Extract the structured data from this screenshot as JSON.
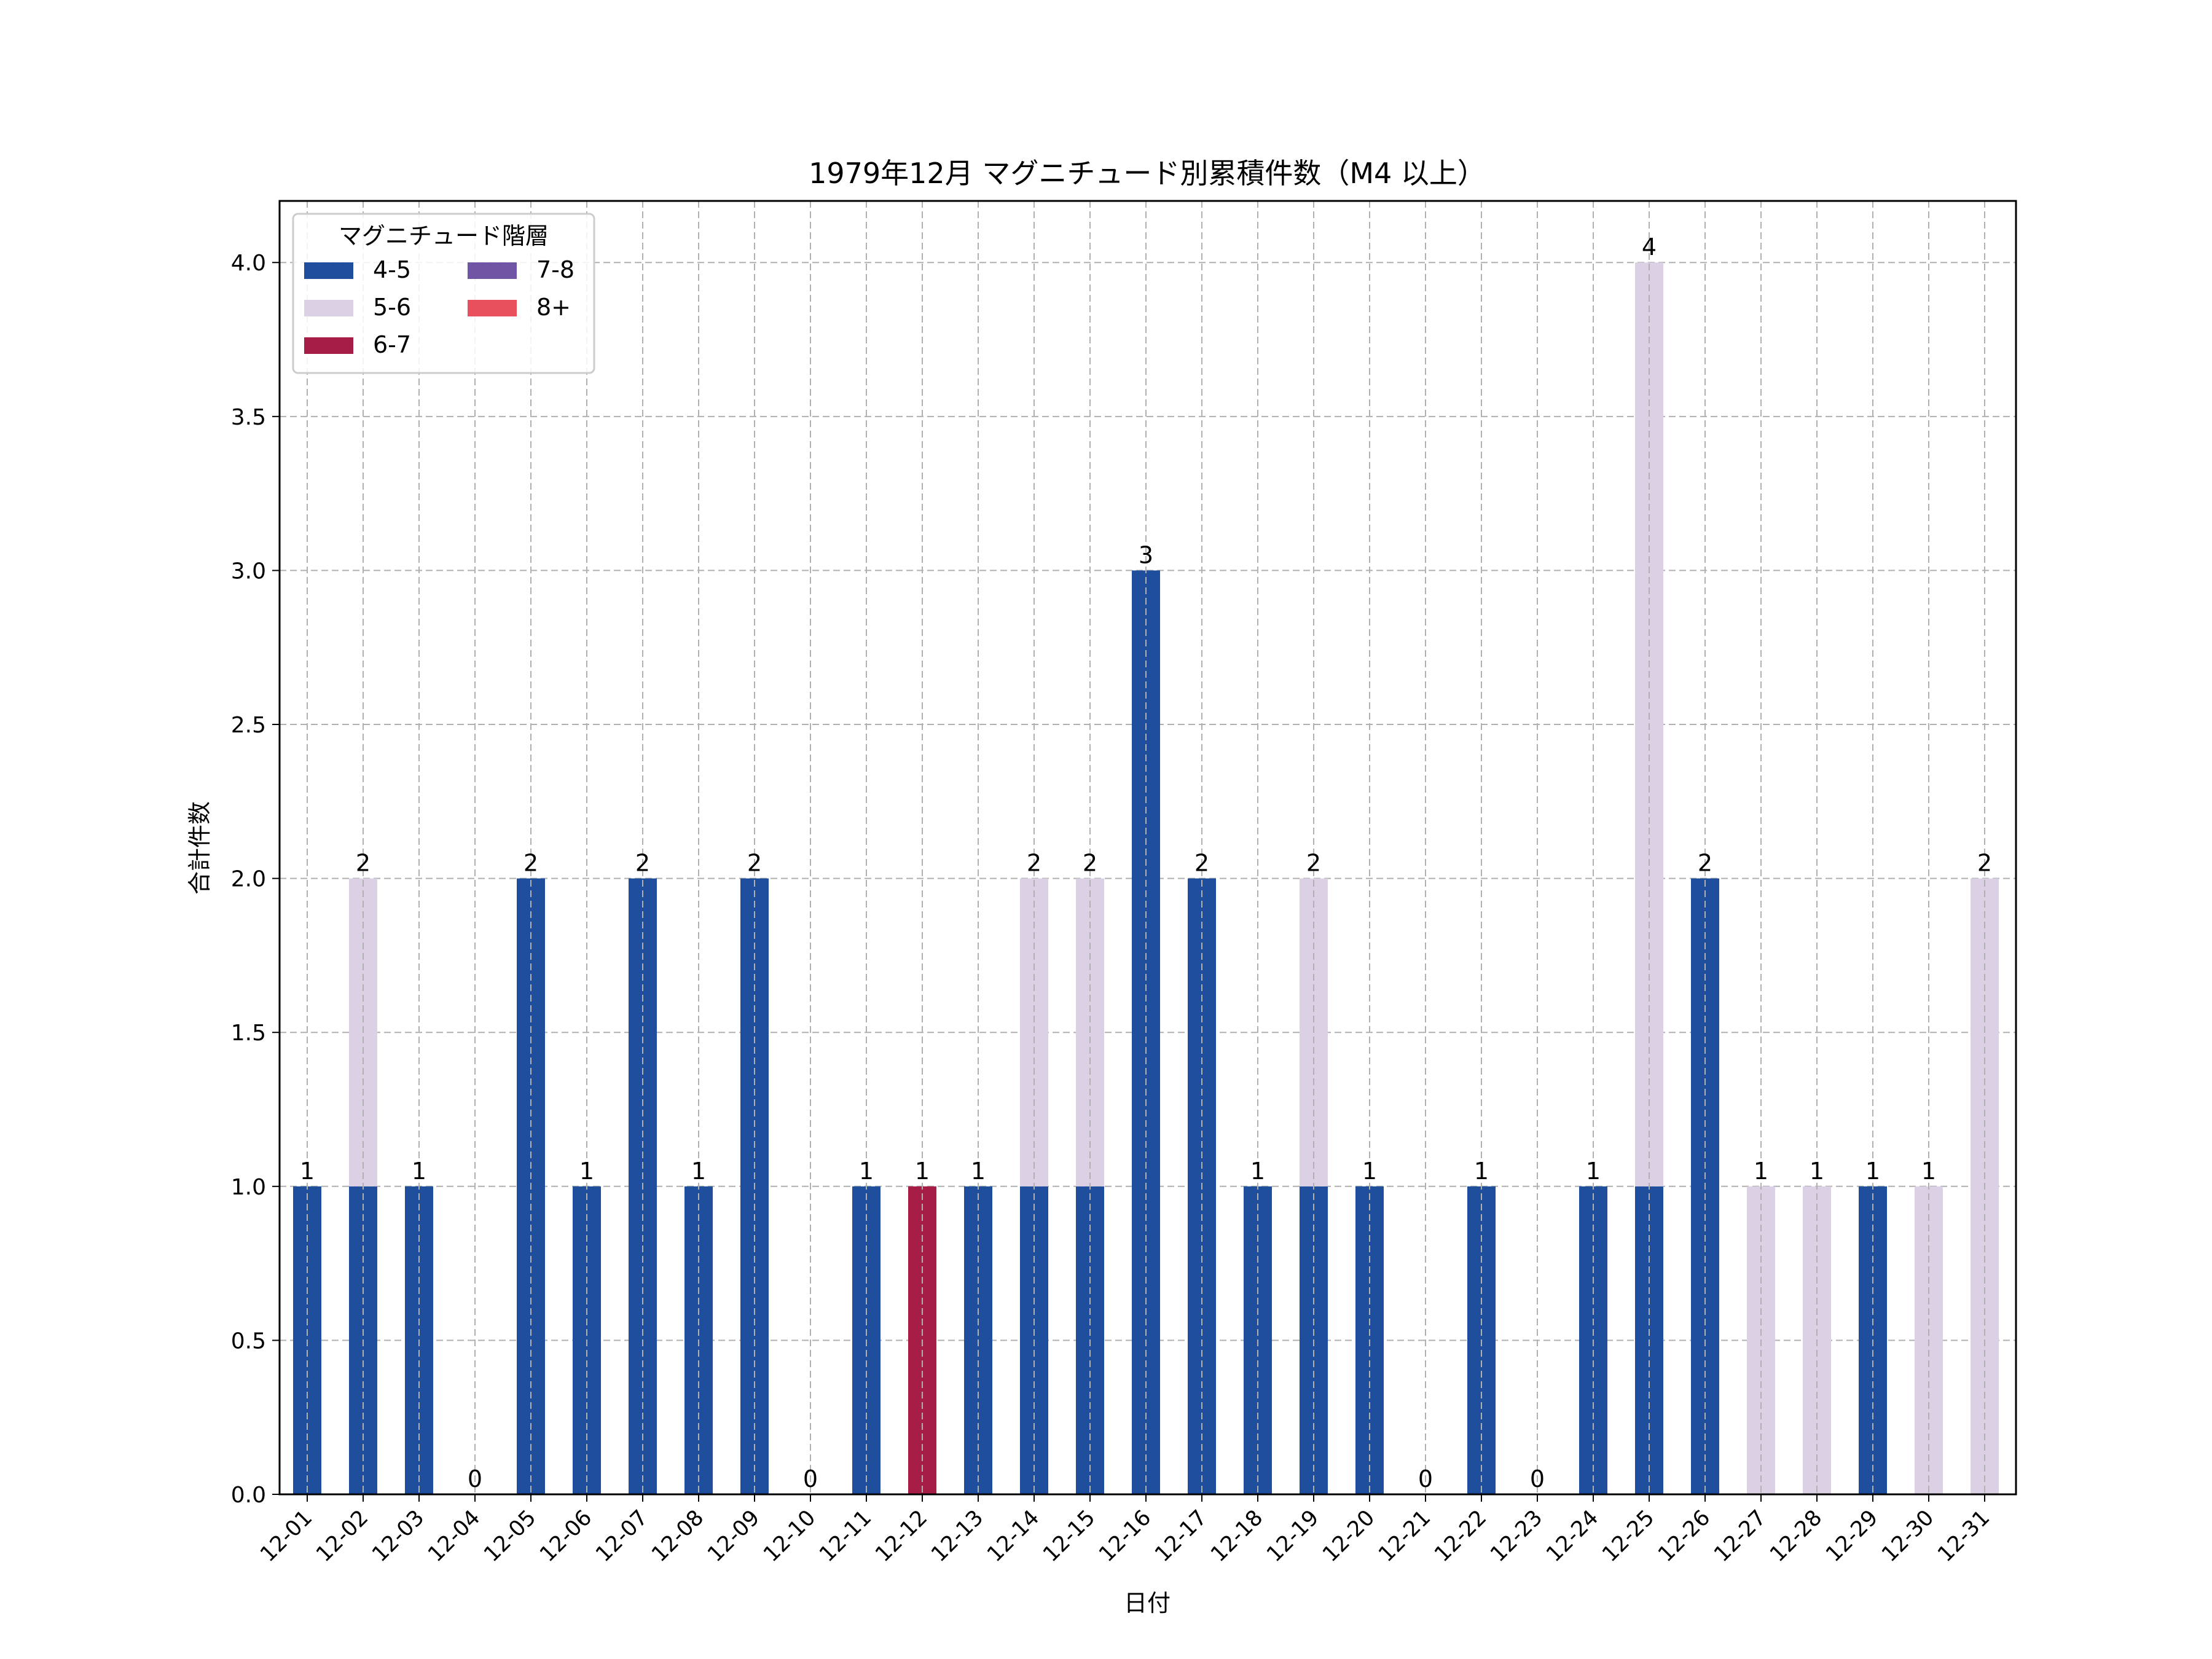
{
  "chart_data": {
    "type": "bar",
    "stacked": true,
    "title": "1979年12月 マグニチュード別累積件数（M4 以上）",
    "xlabel": "日付",
    "ylabel": "合計件数",
    "ylim": [
      0,
      4.2
    ],
    "yticks": [
      "0.0",
      "0.5",
      "1.0",
      "1.5",
      "2.0",
      "2.5",
      "3.0",
      "3.5",
      "4.0"
    ],
    "grid": true,
    "legend": {
      "title": "マグニチュード階層",
      "placement": "top-left",
      "columns": 2
    },
    "categories": [
      "12-01",
      "12-02",
      "12-03",
      "12-04",
      "12-05",
      "12-06",
      "12-07",
      "12-08",
      "12-09",
      "12-10",
      "12-11",
      "12-12",
      "12-13",
      "12-14",
      "12-15",
      "12-16",
      "12-17",
      "12-18",
      "12-19",
      "12-20",
      "12-21",
      "12-22",
      "12-23",
      "12-24",
      "12-25",
      "12-26",
      "12-27",
      "12-28",
      "12-29",
      "12-30",
      "12-31"
    ],
    "series": [
      {
        "name": "4-5",
        "color": "#1f4e9c",
        "values": [
          1,
          1,
          1,
          0,
          2,
          1,
          2,
          1,
          2,
          0,
          1,
          0,
          1,
          1,
          1,
          3,
          2,
          1,
          1,
          1,
          0,
          1,
          0,
          1,
          1,
          2,
          0,
          0,
          1,
          0,
          0
        ]
      },
      {
        "name": "5-6",
        "color": "#dbd0e4",
        "values": [
          0,
          1,
          0,
          0,
          0,
          0,
          0,
          0,
          0,
          0,
          0,
          0,
          0,
          1,
          1,
          0,
          0,
          0,
          1,
          0,
          0,
          0,
          0,
          0,
          3,
          0,
          1,
          1,
          0,
          1,
          2
        ]
      },
      {
        "name": "6-7",
        "color": "#a61e45",
        "values": [
          0,
          0,
          0,
          0,
          0,
          0,
          0,
          0,
          0,
          0,
          0,
          1,
          0,
          0,
          0,
          0,
          0,
          0,
          0,
          0,
          0,
          0,
          0,
          0,
          0,
          0,
          0,
          0,
          0,
          0,
          0
        ]
      },
      {
        "name": "7-8",
        "color": "#6f55a3",
        "values": [
          0,
          0,
          0,
          0,
          0,
          0,
          0,
          0,
          0,
          0,
          0,
          0,
          0,
          0,
          0,
          0,
          0,
          0,
          0,
          0,
          0,
          0,
          0,
          0,
          0,
          0,
          0,
          0,
          0,
          0,
          0
        ]
      },
      {
        "name": "8+",
        "color": "#e8505e",
        "values": [
          0,
          0,
          0,
          0,
          0,
          0,
          0,
          0,
          0,
          0,
          0,
          0,
          0,
          0,
          0,
          0,
          0,
          0,
          0,
          0,
          0,
          0,
          0,
          0,
          0,
          0,
          0,
          0,
          0,
          0,
          0
        ]
      }
    ],
    "totals": [
      1,
      2,
      1,
      0,
      2,
      1,
      2,
      1,
      2,
      0,
      1,
      1,
      1,
      2,
      2,
      3,
      2,
      1,
      2,
      1,
      0,
      1,
      0,
      1,
      4,
      2,
      1,
      1,
      1,
      1,
      2
    ]
  }
}
